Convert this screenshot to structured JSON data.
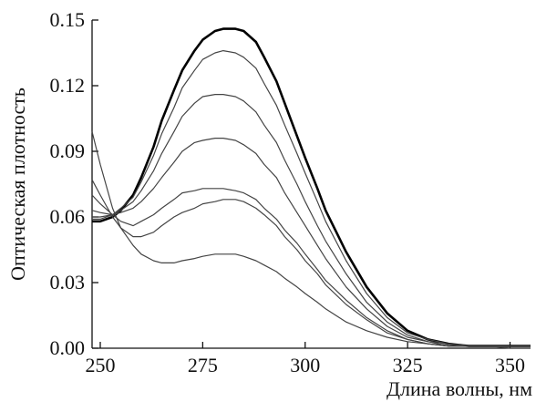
{
  "chart_data": {
    "type": "line",
    "title": "",
    "xlabel": "Длина волны, нм",
    "ylabel": "Оптическая плотность",
    "xlim": [
      248,
      355
    ],
    "ylim": [
      0,
      0.15
    ],
    "x_ticks": [
      250,
      275,
      300,
      325,
      350
    ],
    "y_ticks": [
      0.0,
      0.03,
      0.06,
      0.09,
      0.12,
      0.15
    ],
    "x_tick_labels": [
      "250",
      "275",
      "300",
      "325",
      "350"
    ],
    "y_tick_labels": [
      "0.00",
      "0.03",
      "0.06",
      "0.09",
      "0.12",
      "0.15"
    ],
    "grid": false,
    "legend": "none",
    "x": [
      248,
      250,
      253,
      255,
      258,
      260,
      263,
      265,
      268,
      270,
      273,
      275,
      278,
      280,
      283,
      285,
      288,
      290,
      293,
      295,
      298,
      300,
      303,
      305,
      310,
      315,
      320,
      325,
      330,
      335,
      340,
      345,
      350,
      355
    ],
    "series": [
      {
        "values": [
          0.058,
          0.058,
          0.06,
          0.063,
          0.07,
          0.078,
          0.092,
          0.104,
          0.118,
          0.127,
          0.136,
          0.141,
          0.145,
          0.146,
          0.146,
          0.145,
          0.14,
          0.133,
          0.122,
          0.112,
          0.097,
          0.087,
          0.073,
          0.063,
          0.044,
          0.028,
          0.016,
          0.008,
          0.004,
          0.002,
          0.001,
          0.001,
          0.001,
          0.001
        ],
        "bold": true
      },
      {
        "values": [
          0.059,
          0.059,
          0.061,
          0.064,
          0.069,
          0.076,
          0.088,
          0.098,
          0.11,
          0.119,
          0.127,
          0.132,
          0.135,
          0.136,
          0.135,
          0.133,
          0.128,
          0.121,
          0.111,
          0.102,
          0.089,
          0.08,
          0.067,
          0.058,
          0.04,
          0.025,
          0.014,
          0.007,
          0.004,
          0.002,
          0.001,
          0.001,
          0.001,
          0.001
        ]
      },
      {
        "values": [
          0.06,
          0.06,
          0.061,
          0.063,
          0.067,
          0.072,
          0.081,
          0.089,
          0.099,
          0.106,
          0.112,
          0.115,
          0.116,
          0.116,
          0.115,
          0.113,
          0.108,
          0.102,
          0.094,
          0.086,
          0.075,
          0.067,
          0.056,
          0.049,
          0.034,
          0.021,
          0.012,
          0.006,
          0.003,
          0.002,
          0.001,
          0.001,
          0.001,
          0.001
        ]
      },
      {
        "values": [
          0.063,
          0.062,
          0.061,
          0.062,
          0.064,
          0.067,
          0.073,
          0.078,
          0.085,
          0.09,
          0.094,
          0.095,
          0.096,
          0.096,
          0.095,
          0.093,
          0.089,
          0.084,
          0.078,
          0.071,
          0.062,
          0.056,
          0.047,
          0.041,
          0.028,
          0.018,
          0.01,
          0.005,
          0.003,
          0.001,
          0.001,
          0.001,
          0.001,
          0.001
        ]
      },
      {
        "values": [
          0.07,
          0.066,
          0.061,
          0.058,
          0.056,
          0.058,
          0.061,
          0.064,
          0.068,
          0.071,
          0.072,
          0.073,
          0.073,
          0.073,
          0.072,
          0.071,
          0.068,
          0.064,
          0.059,
          0.054,
          0.048,
          0.043,
          0.036,
          0.031,
          0.022,
          0.014,
          0.008,
          0.004,
          0.002,
          0.001,
          0.001,
          0.001,
          0.001,
          0.001
        ]
      },
      {
        "values": [
          0.077,
          0.07,
          0.06,
          0.055,
          0.051,
          0.051,
          0.053,
          0.056,
          0.06,
          0.062,
          0.064,
          0.066,
          0.067,
          0.068,
          0.068,
          0.067,
          0.064,
          0.061,
          0.056,
          0.051,
          0.045,
          0.04,
          0.034,
          0.029,
          0.02,
          0.013,
          0.007,
          0.004,
          0.002,
          0.001,
          0.001,
          0.001,
          0.001,
          0.001
        ]
      },
      {
        "values": [
          0.099,
          0.084,
          0.064,
          0.055,
          0.047,
          0.043,
          0.04,
          0.039,
          0.039,
          0.04,
          0.041,
          0.042,
          0.043,
          0.043,
          0.043,
          0.042,
          0.04,
          0.038,
          0.035,
          0.032,
          0.028,
          0.025,
          0.021,
          0.018,
          0.012,
          0.008,
          0.005,
          0.003,
          0.002,
          0.001,
          0.001,
          0.001,
          0.0,
          0.0
        ]
      }
    ]
  }
}
